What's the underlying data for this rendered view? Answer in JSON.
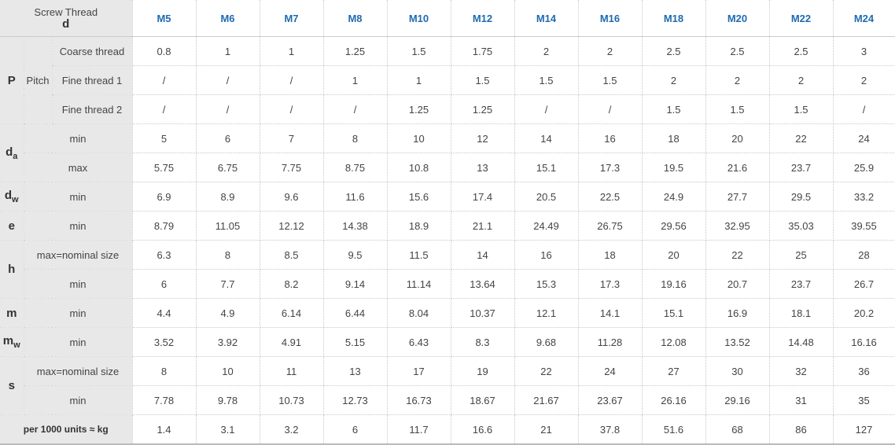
{
  "header": {
    "corner_line1": "Screw Thread",
    "corner_line2": "d",
    "sizes": [
      "M5",
      "M6",
      "M7",
      "M8",
      "M10",
      "M12",
      "M14",
      "M16",
      "M18",
      "M20",
      "M22",
      "M24"
    ]
  },
  "labels": {
    "P": "P",
    "pitch": "Pitch",
    "coarse": "Coarse thread",
    "fine1": "Fine thread 1",
    "fine2": "Fine thread 2",
    "d_main": "d",
    "a_sub": "a",
    "w_sub": "w",
    "e": "e",
    "h": "h",
    "m": "m",
    "m_main": "m",
    "s": "s",
    "min": "min",
    "max": "max",
    "max_nominal": "max=nominal size",
    "weight": "per 1000 units ≈ kg"
  },
  "rows": {
    "coarse": [
      "0.8",
      "1",
      "1",
      "1.25",
      "1.5",
      "1.75",
      "2",
      "2",
      "2.5",
      "2.5",
      "2.5",
      "3"
    ],
    "fine1": [
      "/",
      "/",
      "/",
      "1",
      "1",
      "1.5",
      "1.5",
      "1.5",
      "2",
      "2",
      "2",
      "2"
    ],
    "fine2": [
      "/",
      "/",
      "/",
      "/",
      "1.25",
      "1.25",
      "/",
      "/",
      "1.5",
      "1.5",
      "1.5",
      "/"
    ],
    "da_min": [
      "5",
      "6",
      "7",
      "8",
      "10",
      "12",
      "14",
      "16",
      "18",
      "20",
      "22",
      "24"
    ],
    "da_max": [
      "5.75",
      "6.75",
      "7.75",
      "8.75",
      "10.8",
      "13",
      "15.1",
      "17.3",
      "19.5",
      "21.6",
      "23.7",
      "25.9"
    ],
    "dw_min": [
      "6.9",
      "8.9",
      "9.6",
      "11.6",
      "15.6",
      "17.4",
      "20.5",
      "22.5",
      "24.9",
      "27.7",
      "29.5",
      "33.2"
    ],
    "e_min": [
      "8.79",
      "11.05",
      "12.12",
      "14.38",
      "18.9",
      "21.1",
      "24.49",
      "26.75",
      "29.56",
      "32.95",
      "35.03",
      "39.55"
    ],
    "h_max": [
      "6.3",
      "8",
      "8.5",
      "9.5",
      "11.5",
      "14",
      "16",
      "18",
      "20",
      "22",
      "25",
      "28"
    ],
    "h_min": [
      "6",
      "7.7",
      "8.2",
      "9.14",
      "11.14",
      "13.64",
      "15.3",
      "17.3",
      "19.16",
      "20.7",
      "23.7",
      "26.7"
    ],
    "m_min": [
      "4.4",
      "4.9",
      "6.14",
      "6.44",
      "8.04",
      "10.37",
      "12.1",
      "14.1",
      "15.1",
      "16.9",
      "18.1",
      "20.2"
    ],
    "mw_min": [
      "3.52",
      "3.92",
      "4.91",
      "5.15",
      "6.43",
      "8.3",
      "9.68",
      "11.28",
      "12.08",
      "13.52",
      "14.48",
      "16.16"
    ],
    "s_max": [
      "8",
      "10",
      "11",
      "13",
      "17",
      "19",
      "22",
      "24",
      "27",
      "30",
      "32",
      "36"
    ],
    "s_min": [
      "7.78",
      "9.78",
      "10.73",
      "12.73",
      "16.73",
      "18.67",
      "21.67",
      "23.67",
      "26.16",
      "29.16",
      "31",
      "35"
    ],
    "weight": [
      "1.4",
      "3.1",
      "3.2",
      "6",
      "11.7",
      "16.6",
      "21",
      "37.8",
      "51.6",
      "68",
      "86",
      "127"
    ]
  }
}
